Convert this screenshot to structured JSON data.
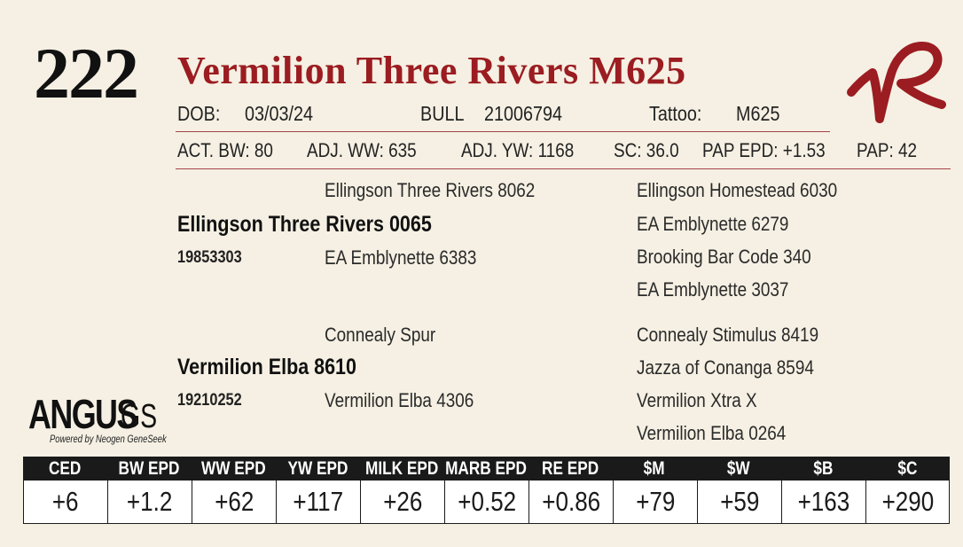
{
  "lot_number": "222",
  "animal_name": "Vermilion Three Rivers M625",
  "details": {
    "dob_label": "DOB:",
    "dob": "03/03/24",
    "sex": "BULL",
    "registration": "21006794",
    "tattoo_label": "Tattoo:",
    "tattoo": "M625"
  },
  "performance": {
    "act_bw": "ACT. BW: 80",
    "adj_ww": "ADJ. WW: 635",
    "adj_yw": "ADJ. YW: 1168",
    "sc": "SC: 36.0",
    "pap_epd": "PAP EPD: +1.53",
    "pap": "PAP: 42"
  },
  "pedigree": {
    "sire": {
      "name": "Ellingson Three Rivers 0065",
      "reg": "19853303",
      "sire": "Ellingson Three Rivers 8062",
      "dam": "EA Emblynette 6383",
      "sire_sire": "Ellingson Homestead 6030",
      "sire_dam": "EA Emblynette 6279",
      "dam_sire": "Brooking Bar Code 340",
      "dam_dam": "EA Emblynette 3037"
    },
    "dam": {
      "name": "Vermilion Elba 8610",
      "reg": "19210252",
      "sire": "Connealy Spur",
      "dam": "Vermilion Elba 4306",
      "sire_sire": "Connealy Stimulus 8419",
      "sire_dam": "Jazza of Conanga 8594",
      "dam_sire": "Vermilion Xtra X",
      "dam_dam": "Vermilion Elba 0264"
    }
  },
  "logo": {
    "main": "ANGUS",
    "suffix": "GS",
    "tagline": "Powered by Neogen GeneSeek"
  },
  "brand_icon": "vr-brand-mark",
  "colors": {
    "accent": "#9b1c21",
    "background": "#f5f0e3",
    "header_bar": "#1a1a1a"
  },
  "epds": [
    {
      "label": "CED",
      "value": "+6"
    },
    {
      "label": "BW EPD",
      "value": "+1.2"
    },
    {
      "label": "WW EPD",
      "value": "+62"
    },
    {
      "label": "YW EPD",
      "value": "+117"
    },
    {
      "label": "MILK EPD",
      "value": "+26"
    },
    {
      "label": "MARB EPD",
      "value": "+0.52"
    },
    {
      "label": "RE EPD",
      "value": "+0.86"
    },
    {
      "label": "$M",
      "value": "+79"
    },
    {
      "label": "$W",
      "value": "+59"
    },
    {
      "label": "$B",
      "value": "+163"
    },
    {
      "label": "$C",
      "value": "+290"
    }
  ]
}
